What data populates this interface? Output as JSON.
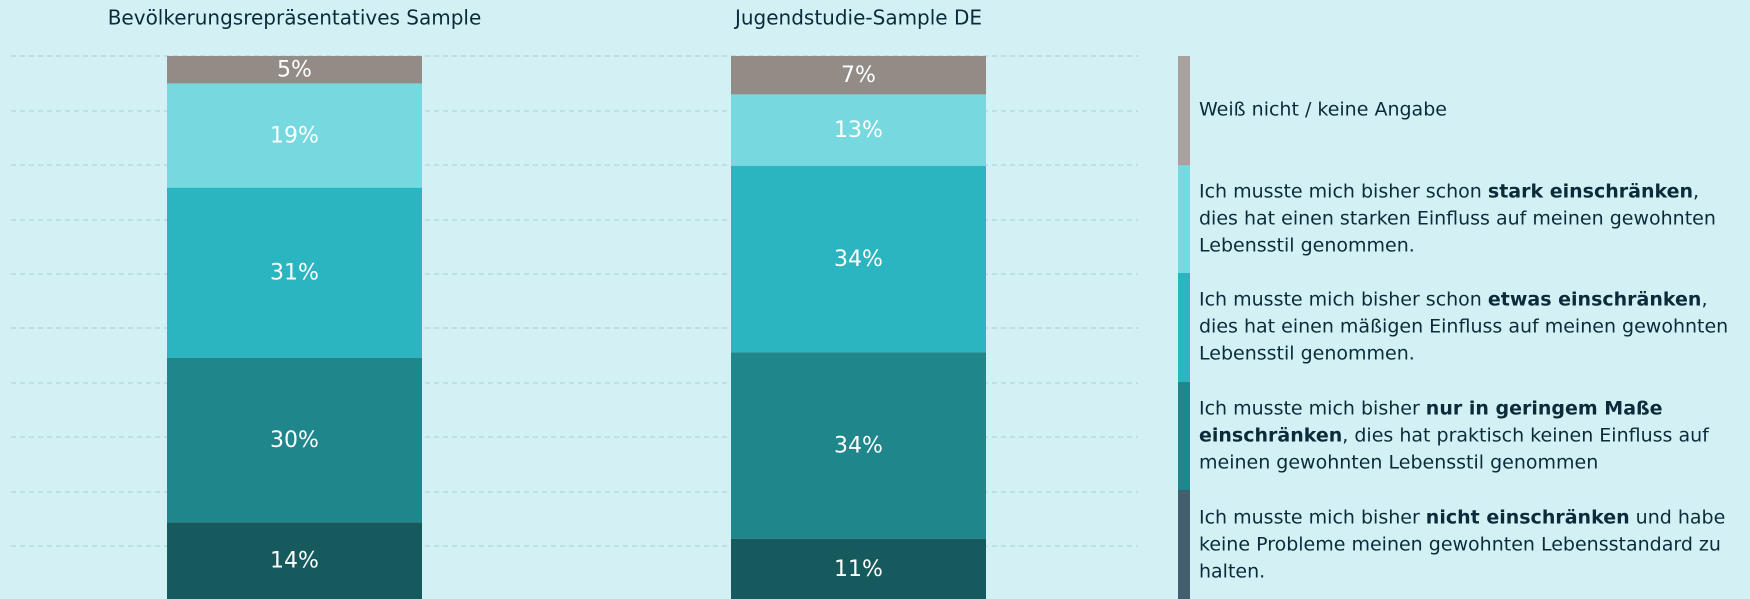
{
  "chart_data": {
    "type": "stacked_bar",
    "categories": [
      "Bevölkerungsrepräsentatives Sample",
      "Jugendstudie-Sample DE"
    ],
    "ylim": [
      0,
      99
    ],
    "series": [
      {
        "name": [
          {
            "text": "Ich musste mich bisher "
          },
          {
            "text": "nicht einschränken",
            "bold": true
          },
          {
            "text": " und habe keine Probleme meinen gewohnten Lebensstandard zu halten."
          }
        ],
        "color": "#165a5e",
        "swatch": "#435f6e",
        "values": [
          14,
          11
        ],
        "value_labels": [
          "14%",
          "11%"
        ]
      },
      {
        "name": [
          {
            "text": "Ich musste mich bisher "
          },
          {
            "text": "nur in geringem Maße einschränken",
            "bold": true
          },
          {
            "text": ", dies hat praktisch keinen Einfluss auf meinen gewohnten Lebensstil genommen"
          }
        ],
        "color": "#1f878c",
        "swatch": "#1f878c",
        "values": [
          30,
          34
        ],
        "value_labels": [
          "30%",
          "34%"
        ]
      },
      {
        "name": [
          {
            "text": "Ich musste mich bisher schon "
          },
          {
            "text": "etwas einschränken",
            "bold": true
          },
          {
            "text": ", dies hat einen mäßigen Einfluss auf meinen gewohnten Lebensstil genommen."
          }
        ],
        "color": "#2bb5c0",
        "swatch": "#2bb5c0",
        "values": [
          31,
          34
        ],
        "value_labels": [
          "31%",
          "34%"
        ]
      },
      {
        "name": [
          {
            "text": "Ich musste mich bisher schon "
          },
          {
            "text": "stark einschränken",
            "bold": true
          },
          {
            "text": ", dies hat einen starken Einfluss auf meinen gewohnten Lebensstil genommen."
          }
        ],
        "color": "#76d9e0",
        "swatch": "#76d9e0",
        "values": [
          19,
          13
        ],
        "value_labels": [
          "19%",
          "13%"
        ]
      },
      {
        "name": [
          {
            "text": "Weiß nicht / keine Angabe"
          }
        ],
        "color": "#928b86",
        "swatch": "#a8a29e",
        "values": [
          5,
          7
        ],
        "value_labels": [
          "5%",
          "7%"
        ]
      }
    ]
  }
}
